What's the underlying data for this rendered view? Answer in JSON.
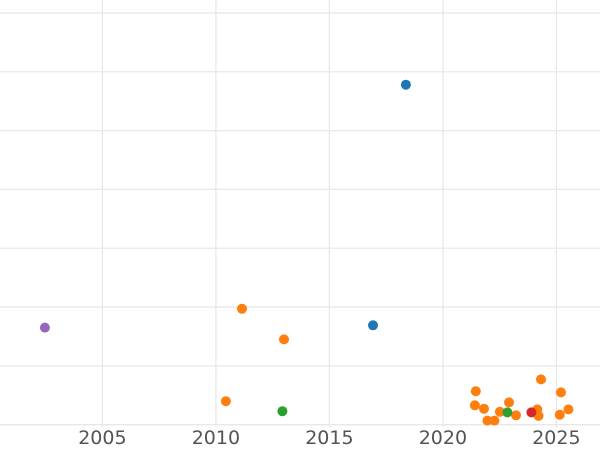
{
  "chart_data": {
    "type": "scatter",
    "title": "",
    "xlabel": "",
    "ylabel": "",
    "x_tick_labels": [
      "2005",
      "2010",
      "2015",
      "2020",
      "2025"
    ],
    "x_tick_values": [
      2005,
      2010,
      2015,
      2020,
      2025
    ],
    "y_tick_labels": [],
    "y_axis_labels_visible": false,
    "y_gridline_values": [
      0,
      1,
      2,
      3,
      4,
      5,
      6,
      7
    ],
    "xlim": [
      2000.49,
      2026.92
    ],
    "ylim": [
      -0.43,
      7.22
    ],
    "grid": true,
    "legend": false,
    "marker_radius": 5,
    "series": [
      {
        "name": "series-blue",
        "color": "#1f77b4",
        "points": [
          {
            "x": 2016.92,
            "y": 1.69
          },
          {
            "x": 2018.37,
            "y": 5.78
          }
        ]
      },
      {
        "name": "series-orange",
        "color": "#ff7f0e",
        "points": [
          {
            "x": 2010.44,
            "y": 0.4
          },
          {
            "x": 2011.15,
            "y": 1.97
          },
          {
            "x": 2013.0,
            "y": 1.45
          },
          {
            "x": 2021.41,
            "y": 0.33
          },
          {
            "x": 2021.45,
            "y": 0.57
          },
          {
            "x": 2021.81,
            "y": 0.27
          },
          {
            "x": 2021.96,
            "y": 0.07
          },
          {
            "x": 2022.27,
            "y": 0.07
          },
          {
            "x": 2022.51,
            "y": 0.22
          },
          {
            "x": 2022.91,
            "y": 0.38
          },
          {
            "x": 2023.22,
            "y": 0.16
          },
          {
            "x": 2024.16,
            "y": 0.26
          },
          {
            "x": 2024.21,
            "y": 0.15
          },
          {
            "x": 2024.32,
            "y": 0.77
          },
          {
            "x": 2025.15,
            "y": 0.17
          },
          {
            "x": 2025.2,
            "y": 0.55
          },
          {
            "x": 2025.53,
            "y": 0.26
          }
        ]
      },
      {
        "name": "series-green",
        "color": "#2ca02c",
        "points": [
          {
            "x": 2012.93,
            "y": 0.23
          },
          {
            "x": 2022.84,
            "y": 0.21
          }
        ]
      },
      {
        "name": "series-red",
        "color": "#d62728",
        "points": [
          {
            "x": 2023.9,
            "y": 0.21
          }
        ]
      },
      {
        "name": "series-purple",
        "color": "#9467bd",
        "points": [
          {
            "x": 2002.47,
            "y": 1.65
          }
        ]
      }
    ]
  },
  "style": {
    "background_color": "#ffffff",
    "gridline_color": "#e8e8e8",
    "tick_label_color": "#545454"
  }
}
